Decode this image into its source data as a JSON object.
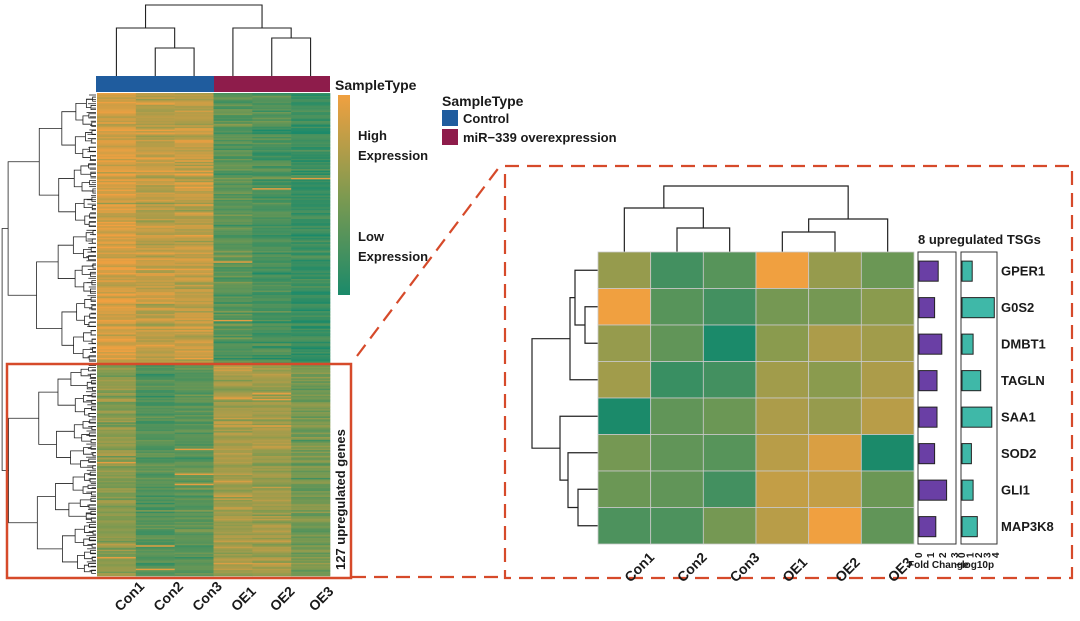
{
  "chart_data": [
    {
      "type": "heatmap",
      "title": "",
      "columns": [
        "Con1",
        "Con2",
        "Con3",
        "OE1",
        "OE2",
        "OE3"
      ],
      "annotation_title": "SampleType",
      "legend_title": "SampleType",
      "groups": [
        {
          "name": "Control",
          "color": "#1f5c9e",
          "columns": [
            "Con1",
            "Con2",
            "Con3"
          ]
        },
        {
          "name": "miR−339 overexpression",
          "color": "#8e1c4b",
          "columns": [
            "OE1",
            "OE2",
            "OE3"
          ]
        }
      ],
      "color_scale": {
        "high": "#f0a040",
        "mid": "#7f9a50",
        "low": "#1b8a6a"
      },
      "colorbar": {
        "high_line1": "High",
        "high_line2": "Expression",
        "low_line1": "Low",
        "low_line2": "Expression"
      },
      "highlight_label": "127 upregulated genes",
      "n_highlighted_rows": 127
    },
    {
      "type": "heatmap",
      "title": "8 upregulated TSGs",
      "columns": [
        "Con1",
        "Con2",
        "Con3",
        "OE1",
        "OE2",
        "OE3"
      ],
      "rows": [
        "GPER1",
        "G0S2",
        "DMBT1",
        "TAGLN",
        "SAA1",
        "SOD2",
        "GLI1",
        "MAP3K8"
      ],
      "values": [
        [
          0.2,
          -0.6,
          -0.4,
          1.0,
          0.2,
          -0.2
        ],
        [
          1.0,
          -0.4,
          -0.6,
          -0.1,
          -0.1,
          0.1
        ],
        [
          0.2,
          -0.3,
          -1.0,
          0.1,
          0.4,
          0.3
        ],
        [
          0.3,
          -0.7,
          -0.6,
          0.3,
          0.1,
          0.4
        ],
        [
          -1.0,
          -0.3,
          -0.2,
          0.4,
          0.2,
          0.5
        ],
        [
          -0.1,
          -0.3,
          -0.4,
          0.5,
          0.8,
          -1.0
        ],
        [
          -0.2,
          -0.3,
          -0.6,
          0.6,
          0.6,
          -0.2
        ],
        [
          -0.5,
          -0.5,
          -0.1,
          0.5,
          1.0,
          -0.3
        ]
      ],
      "bar_panels": [
        {
          "xlabel": "Fold Change",
          "ticks": [
            "0",
            "1",
            "2",
            "3"
          ],
          "xlim": [
            0,
            3
          ],
          "values": [
            1.6,
            1.3,
            1.9,
            1.5,
            1.5,
            1.3,
            2.3,
            1.4
          ]
        },
        {
          "xlabel": "−log10p",
          "ticks": [
            "0",
            "1",
            "2",
            "3",
            "4"
          ],
          "xlim": [
            0,
            4
          ],
          "values": [
            1.2,
            3.8,
            1.3,
            2.2,
            3.5,
            1.1,
            1.3,
            1.8
          ]
        }
      ]
    }
  ]
}
